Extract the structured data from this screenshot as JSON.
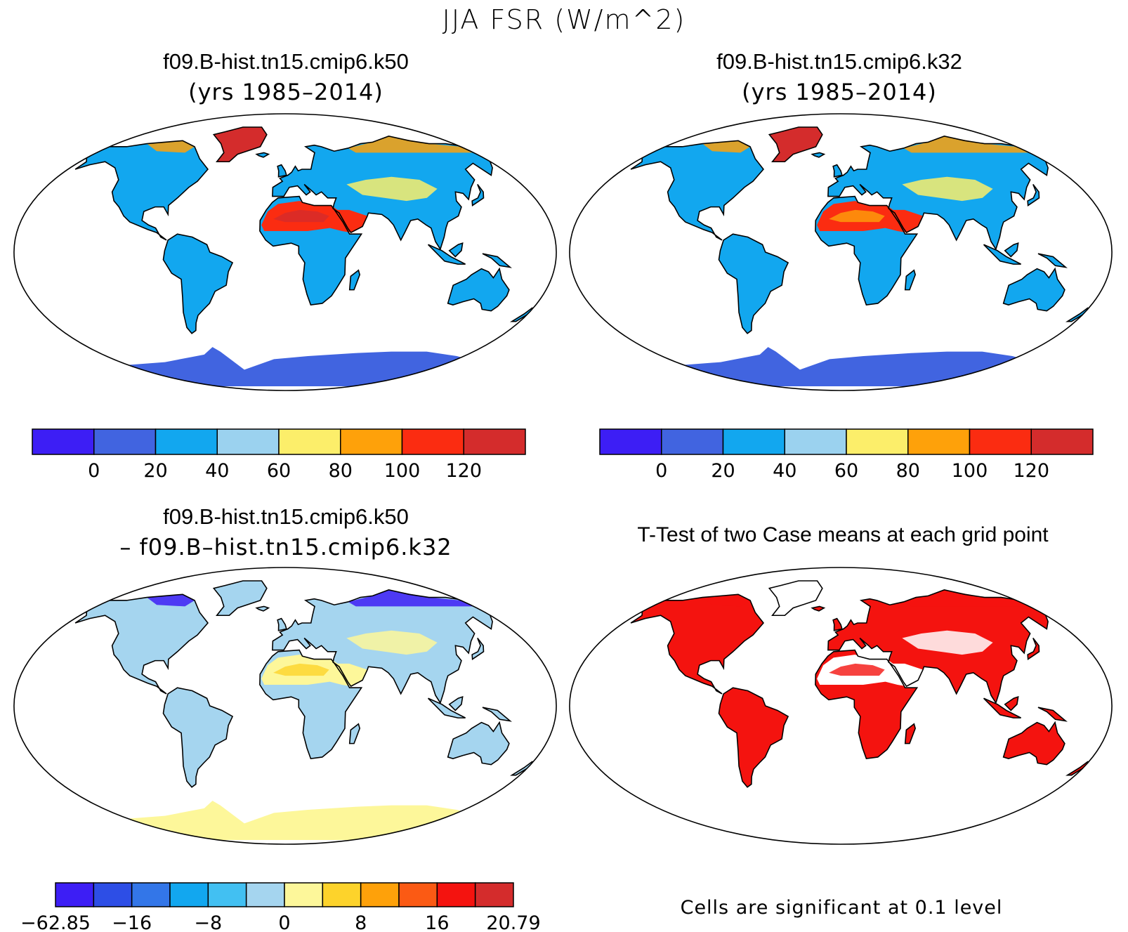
{
  "figure": {
    "title": "JJA FSR (W/m^2)"
  },
  "panels": [
    {
      "id": "k50",
      "title": "f09.B-hist.tn15.cmip6.k50",
      "subtitle": "(yrs 1985–2014)",
      "colorbar": {
        "colors": [
          "#3d1ef5",
          "#4164e0",
          "#12a7ef",
          "#9bd2ef",
          "#fcee6a",
          "#fea10a",
          "#fb2c11",
          "#d42c2c"
        ],
        "labels": [
          "0",
          "20",
          "40",
          "60",
          "80",
          "100",
          "120"
        ]
      }
    },
    {
      "id": "k32",
      "title": "f09.B-hist.tn15.cmip6.k32",
      "subtitle": "(yrs 1985–2014)",
      "colorbar": {
        "colors": [
          "#3d1ef5",
          "#4164e0",
          "#12a7ef",
          "#9bd2ef",
          "#fcee6a",
          "#fea10a",
          "#fb2c11",
          "#d42c2c"
        ],
        "labels": [
          "0",
          "20",
          "40",
          "60",
          "80",
          "100",
          "120"
        ]
      }
    },
    {
      "id": "diff",
      "title": "f09.B-hist.tn15.cmip6.k50",
      "subtitle": "– f09.B–hist.tn15.cmip6.k32",
      "colorbar": {
        "colors": [
          "#3d1ef5",
          "#2d4ee6",
          "#3376e8",
          "#12a7ef",
          "#42c0f2",
          "#a5d5ef",
          "#fdf79a",
          "#fdd32b",
          "#fea10a",
          "#fb5a14",
          "#f4130f",
          "#d42c2c"
        ],
        "labels": [
          "−62.85",
          "−16",
          "−8",
          "0",
          "8",
          "16",
          "20.79"
        ]
      }
    },
    {
      "id": "ttest",
      "title": "T-Test of two Case means at each grid point",
      "note": "Cells are significant at 0.1 level",
      "significant_color": "#f4130f"
    }
  ]
}
